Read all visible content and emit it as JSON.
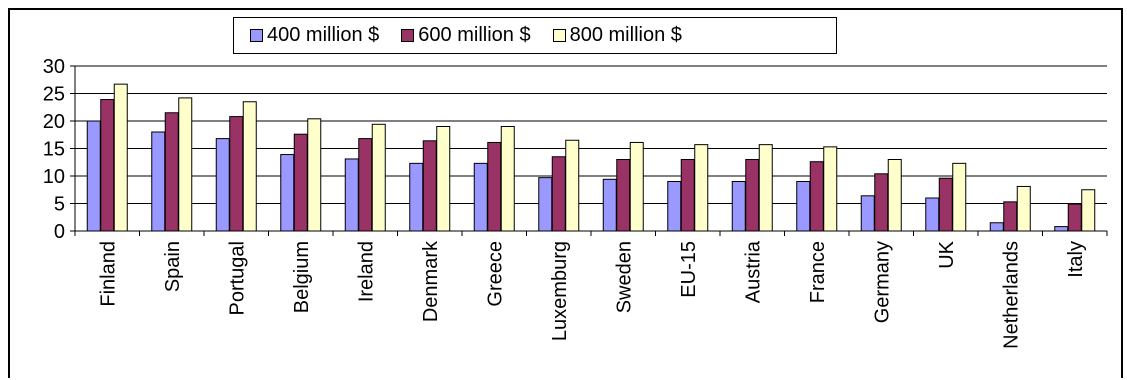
{
  "chart_data": {
    "type": "bar",
    "title": "",
    "xlabel": "",
    "ylabel": "",
    "ylim": [
      0,
      30
    ],
    "yticks": [
      0,
      5,
      10,
      15,
      20,
      25,
      30
    ],
    "grid": true,
    "legend_position": "top",
    "categories": [
      "Finland",
      "Spain",
      "Portugal",
      "Belgium",
      "Ireland",
      "Denmark",
      "Greece",
      "Luxemburg",
      "Sweden",
      "EU-15",
      "Austria",
      "France",
      "Germany",
      "UK",
      "Netherlands",
      "Italy"
    ],
    "series": [
      {
        "name": "400 million $",
        "color": "#9999FF",
        "values": [
          20,
          18,
          16.8,
          13.9,
          13.1,
          12.3,
          12.3,
          9.7,
          9.4,
          9,
          9,
          9,
          6.4,
          6,
          1.5,
          0.8
        ]
      },
      {
        "name": "600 million $",
        "color": "#993366",
        "values": [
          23.9,
          21.5,
          20.8,
          17.6,
          16.8,
          16.4,
          16.1,
          13.5,
          13,
          13,
          13,
          12.6,
          10.4,
          9.6,
          5.3,
          4.9
        ]
      },
      {
        "name": "800 million $",
        "color": "#FFFFCC",
        "values": [
          26.7,
          24.2,
          23.5,
          20.4,
          19.4,
          19,
          19,
          16.5,
          16.1,
          15.7,
          15.7,
          15.3,
          13,
          12.3,
          8.1,
          7.5
        ]
      }
    ]
  }
}
